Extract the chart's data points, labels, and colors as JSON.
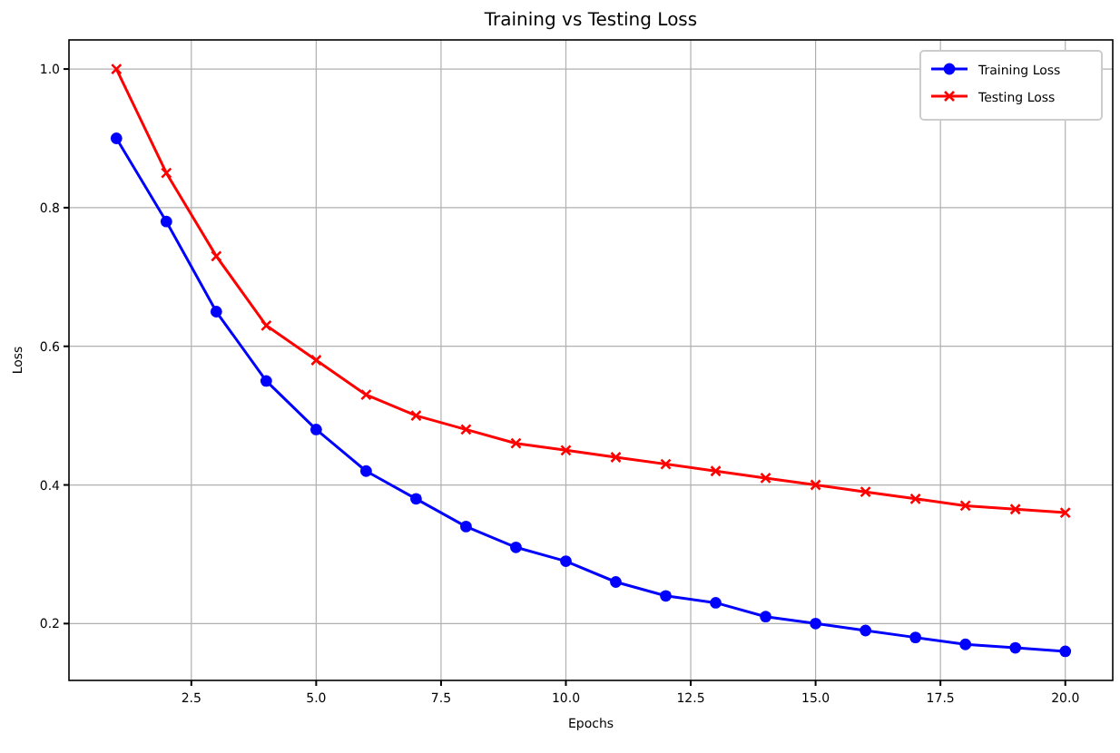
{
  "chart_data": {
    "type": "line",
    "title": "Training vs Testing Loss",
    "xlabel": "Epochs",
    "ylabel": "Loss",
    "x": [
      1,
      2,
      3,
      4,
      5,
      6,
      7,
      8,
      9,
      10,
      11,
      12,
      13,
      14,
      15,
      16,
      17,
      18,
      19,
      20
    ],
    "series": [
      {
        "name": "Training Loss",
        "color": "#0000ff",
        "marker": "circle",
        "values": [
          0.9,
          0.78,
          0.65,
          0.55,
          0.48,
          0.42,
          0.38,
          0.34,
          0.31,
          0.29,
          0.26,
          0.24,
          0.23,
          0.21,
          0.2,
          0.19,
          0.18,
          0.17,
          0.165,
          0.16
        ]
      },
      {
        "name": "Testing Loss",
        "color": "#ff0000",
        "marker": "cross",
        "values": [
          1.0,
          0.85,
          0.73,
          0.63,
          0.58,
          0.53,
          0.5,
          0.48,
          0.46,
          0.45,
          0.44,
          0.43,
          0.42,
          0.41,
          0.4,
          0.39,
          0.38,
          0.37,
          0.365,
          0.36
        ]
      }
    ],
    "xlim": [
      0.05,
      20.95
    ],
    "ylim": [
      0.118,
      1.042
    ],
    "xticks": [
      2.5,
      {
        "value": 5,
        "label": "5.0"
      },
      7.5,
      {
        "value": 10,
        "label": "10.0"
      },
      12.5,
      {
        "value": 15,
        "label": "15.0"
      },
      17.5,
      {
        "value": 20,
        "label": "20.0"
      }
    ],
    "yticks": [
      0.2,
      0.4,
      0.6,
      0.8,
      {
        "value": 1,
        "label": "1.0"
      }
    ],
    "grid": true,
    "legend": "top right",
    "line_style": "solid"
  }
}
